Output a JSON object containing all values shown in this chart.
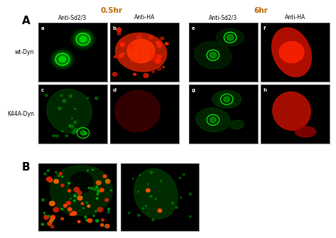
{
  "title_A": "A",
  "title_B": "B",
  "label_05hr": "0.5hr",
  "label_6hr": "6hr",
  "col_labels": [
    "Anti-Sd2/3",
    "Anti-HA",
    "Anti-Sd2/3",
    "Anti-HA"
  ],
  "row_labels_A": [
    "wt-Dyn",
    "K44A-Dyn"
  ],
  "panel_letters_top": [
    "a",
    "b",
    "e",
    "f"
  ],
  "panel_letters_bot": [
    "c",
    "d",
    "g",
    "h"
  ],
  "bg_color": "#ffffff",
  "panel_bg": "#000000",
  "panel_border": "#888888",
  "label_color_05hr": "#cc6600",
  "label_color_6hr": "#cc6600",
  "col_label_color": "#000000",
  "row_label_color": "#000000",
  "letter_color": "#ffffff"
}
